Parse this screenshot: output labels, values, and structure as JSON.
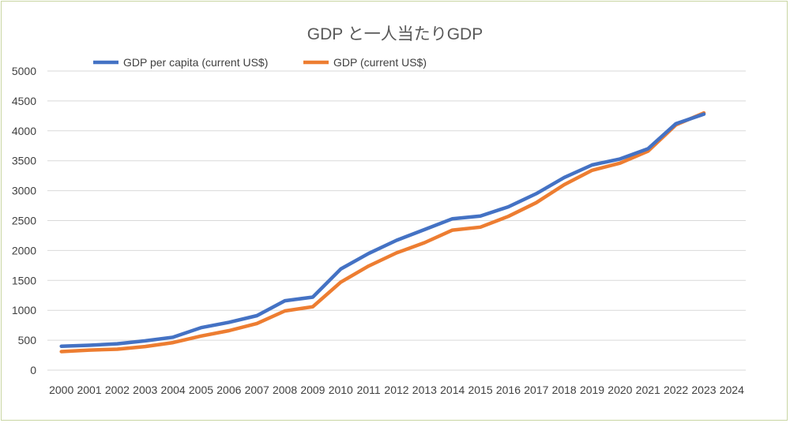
{
  "chart_data": {
    "type": "line",
    "title": "GDP と一人当たりGDP",
    "xlabel": "",
    "ylabel": "",
    "categories": [
      "2000",
      "2001",
      "2002",
      "2003",
      "2004",
      "2005",
      "2006",
      "2007",
      "2008",
      "2009",
      "2010",
      "2011",
      "2012",
      "2013",
      "2014",
      "2015",
      "2016",
      "2017",
      "2018",
      "2019",
      "2020",
      "2021",
      "2022",
      "2023",
      "2024"
    ],
    "y_ticks": [
      0,
      500,
      1000,
      1500,
      2000,
      2500,
      3000,
      3500,
      4000,
      4500,
      5000
    ],
    "ylim": [
      0,
      5000
    ],
    "grid": true,
    "legend_position": "top",
    "series": [
      {
        "name": "GDP per capita (current US$)",
        "color": "#4472c4",
        "values": [
          400,
          415,
          440,
          490,
          550,
          710,
          800,
          910,
          1160,
          1220,
          1690,
          1950,
          2170,
          2350,
          2530,
          2575,
          2730,
          2950,
          3220,
          3430,
          3530,
          3700,
          4120,
          4280,
          null
        ]
      },
      {
        "name": "GDP (current US$)",
        "color": "#ed7d31",
        "values": [
          310,
          335,
          350,
          395,
          460,
          570,
          660,
          780,
          990,
          1060,
          1470,
          1740,
          1960,
          2130,
          2340,
          2390,
          2570,
          2800,
          3100,
          3340,
          3460,
          3660,
          4100,
          4300,
          null
        ]
      }
    ]
  }
}
